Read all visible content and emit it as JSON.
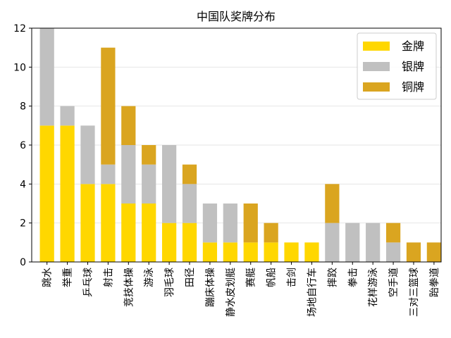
{
  "chart_data": {
    "type": "bar",
    "stacked": true,
    "title": "中国队奖牌分布",
    "xlabel": "",
    "ylabel": "",
    "ylim": [
      0,
      12
    ],
    "yticks": [
      0,
      2,
      4,
      6,
      8,
      10,
      12
    ],
    "grid": "horizontal",
    "legend_position": "top-right",
    "categories": [
      "跳水",
      "举重",
      "乒乓球",
      "射击",
      "竞技体操",
      "游泳",
      "羽毛球",
      "田径",
      "蹦床体操",
      "静水皮划艇",
      "赛艇",
      "帆船",
      "击剑",
      "场地自行车",
      "摔跤",
      "拳击",
      "花样游泳",
      "空手道",
      "三对三篮球",
      "跆拳道"
    ],
    "series": [
      {
        "name": "金牌",
        "color": "#FFD700",
        "values": [
          7,
          7,
          4,
          4,
          3,
          3,
          2,
          2,
          1,
          1,
          1,
          1,
          1,
          1,
          0,
          0,
          0,
          0,
          0,
          0
        ]
      },
      {
        "name": "银牌",
        "color": "#C0C0C0",
        "values": [
          5,
          1,
          3,
          1,
          3,
          2,
          4,
          2,
          2,
          2,
          0,
          0,
          0,
          0,
          2,
          2,
          2,
          1,
          0,
          0
        ]
      },
      {
        "name": "铜牌",
        "color": "#DAA520",
        "values": [
          0,
          0,
          0,
          6,
          2,
          1,
          0,
          1,
          0,
          0,
          2,
          1,
          0,
          0,
          2,
          0,
          0,
          1,
          1,
          1
        ]
      }
    ]
  }
}
